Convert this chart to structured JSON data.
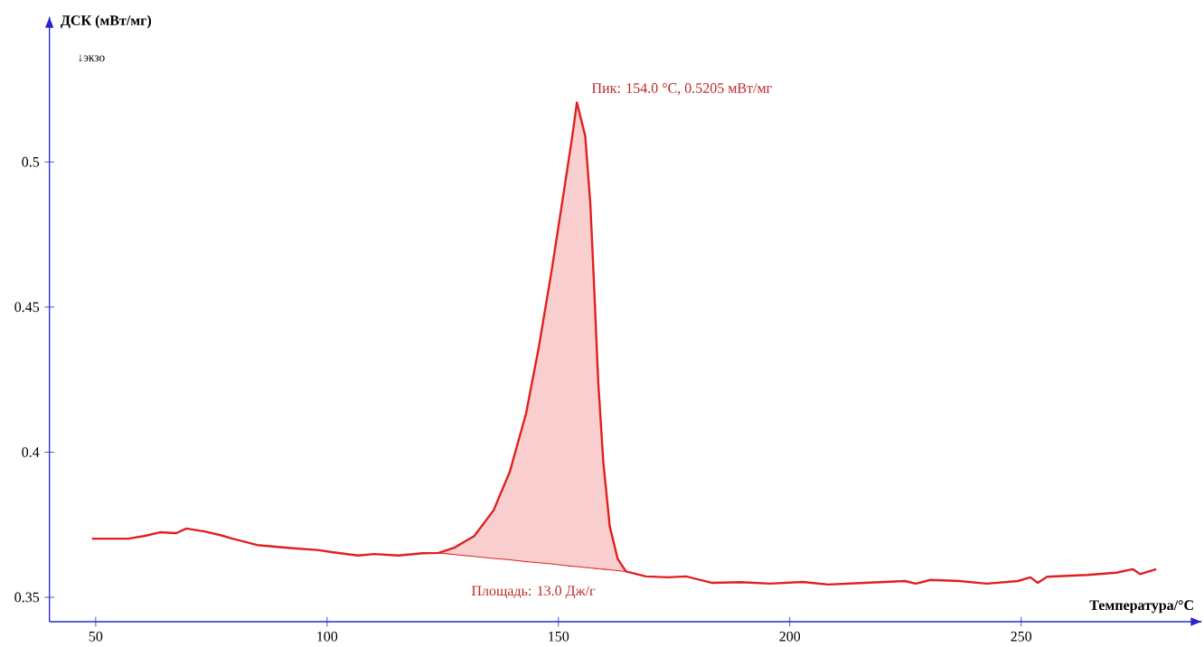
{
  "chart_data": {
    "type": "line",
    "xlabel": "Температура/°C",
    "ylabel": "ДСК (мВт/мг)",
    "annotations": [
      "↓экзо",
      {
        "text": "Пик: 154.0 °C, 0.5205 мВт/мг",
        "x": 154.0,
        "y": 0.5205
      },
      "Площадь: 13.0 Дж/г"
    ],
    "xlim": [
      40,
      289
    ],
    "ylim": [
      0.3416,
      0.55
    ],
    "xticks": [
      50,
      100,
      150,
      200,
      250
    ],
    "yticks": [
      0.35,
      0.4,
      0.45,
      0.5
    ],
    "series": [
      {
        "type": "line",
        "color": "#e02020",
        "x": [
          49.2,
          57.0,
          60.4,
          63.9,
          67.4,
          69.6,
          73.5,
          77.0,
          79.6,
          84.9,
          92.7,
          97.9,
          101.4,
          106.7,
          110.2,
          115.4,
          120.6,
          124.1,
          127.6,
          131.8,
          136.0,
          139.5,
          143.0,
          145.7,
          148.5,
          151.3,
          153.0,
          154.0,
          155.8,
          156.9,
          157.7,
          158.6,
          159.7,
          161.1,
          162.8,
          164.6,
          168.9,
          173.7,
          177.6,
          183.1,
          189.5,
          195.7,
          202.8,
          208.3,
          216.2,
          224.9,
          227.2,
          230.4,
          236.7,
          242.6,
          249.3,
          252.0,
          253.6,
          255.6,
          264.3,
          270.6,
          274.1,
          275.7,
          279.2
        ],
        "values": [
          0.3702,
          0.3702,
          0.3711,
          0.3724,
          0.3721,
          0.3737,
          0.3727,
          0.3714,
          0.3702,
          0.368,
          0.3669,
          0.3663,
          0.3655,
          0.3644,
          0.3649,
          0.3644,
          0.3652,
          0.3653,
          0.3672,
          0.3711,
          0.38,
          0.3933,
          0.4133,
          0.4356,
          0.4622,
          0.4911,
          0.5089,
          0.5205,
          0.5089,
          0.4856,
          0.4578,
          0.4244,
          0.3967,
          0.3744,
          0.3633,
          0.3589,
          0.3572,
          0.3569,
          0.3572,
          0.355,
          0.3552,
          0.3547,
          0.3553,
          0.3544,
          0.355,
          0.3556,
          0.3547,
          0.356,
          0.3556,
          0.3547,
          0.3556,
          0.3569,
          0.355,
          0.3571,
          0.3577,
          0.3585,
          0.3597,
          0.358,
          0.3597
        ]
      },
      {
        "type": "line",
        "color": "#e02020",
        "x": [
          124.1,
          127.6,
          131.8,
          136.0,
          139.5,
          143.0,
          145.7,
          148.5,
          151.3,
          153.0,
          154.0,
          155.8,
          156.9,
          157.7,
          158.6,
          159.7,
          161.1,
          162.8,
          164.6
        ],
        "values": [
          0.3653,
          0.3647,
          0.3641,
          0.3634,
          0.3629,
          0.3623,
          0.3619,
          0.3615,
          0.361,
          0.3607,
          0.3606,
          0.3603,
          0.3601,
          0.36,
          0.3598,
          0.3597,
          0.3595,
          0.3592,
          0.3589
        ],
        "upper": [
          0.3653,
          0.3672,
          0.3711,
          0.38,
          0.3933,
          0.4133,
          0.4356,
          0.4622,
          0.4911,
          0.5089,
          0.5205,
          0.5089,
          0.4856,
          0.4578,
          0.4244,
          0.3967,
          0.3744,
          0.3633,
          0.3589
        ],
        "lower": [
          0.3653,
          0.3647,
          0.3641,
          0.3634,
          0.3629,
          0.3623,
          0.3619,
          0.3615,
          0.361,
          0.3607,
          0.3606,
          0.3603,
          0.3601,
          0.36,
          0.3598,
          0.3597,
          0.3595,
          0.3592,
          0.3589
        ]
      }
    ]
  }
}
